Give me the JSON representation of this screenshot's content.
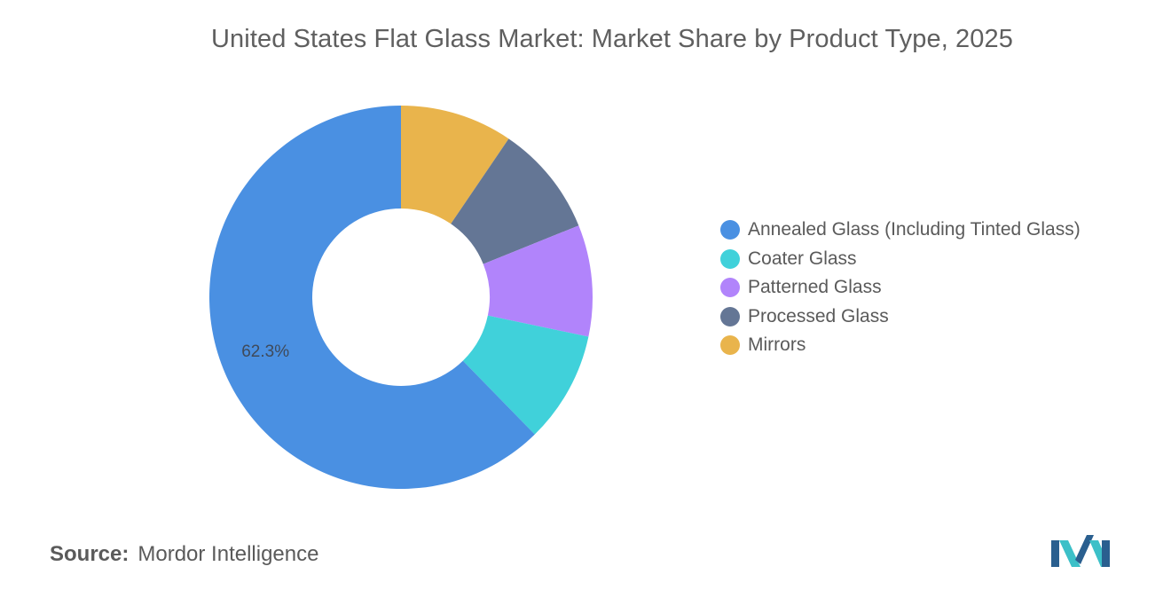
{
  "chart_data": {
    "type": "pie",
    "variant": "donut",
    "title": "United States Flat Glass Market: Market Share by Product Type, 2025",
    "categories": [
      "Annealed Glass (Including Tinted Glass)",
      "Coater Glass",
      "Patterned Glass",
      "Processed Glass",
      "Mirrors"
    ],
    "values": [
      62.3,
      9.4,
      9.4,
      9.4,
      9.5
    ],
    "colors": [
      "#4a90e2",
      "#40d1da",
      "#b184fb",
      "#647695",
      "#e9b44c"
    ],
    "data_labels": [
      "62.3%",
      "",
      "",
      "",
      ""
    ],
    "legend_placement": "right"
  },
  "source": {
    "key": "Source:",
    "value": "Mordor Intelligence"
  },
  "logo": {
    "icon": "mordor-intelligence-logo-icon",
    "colors": [
      "#2a5f8f",
      "#3cc0c8"
    ]
  }
}
